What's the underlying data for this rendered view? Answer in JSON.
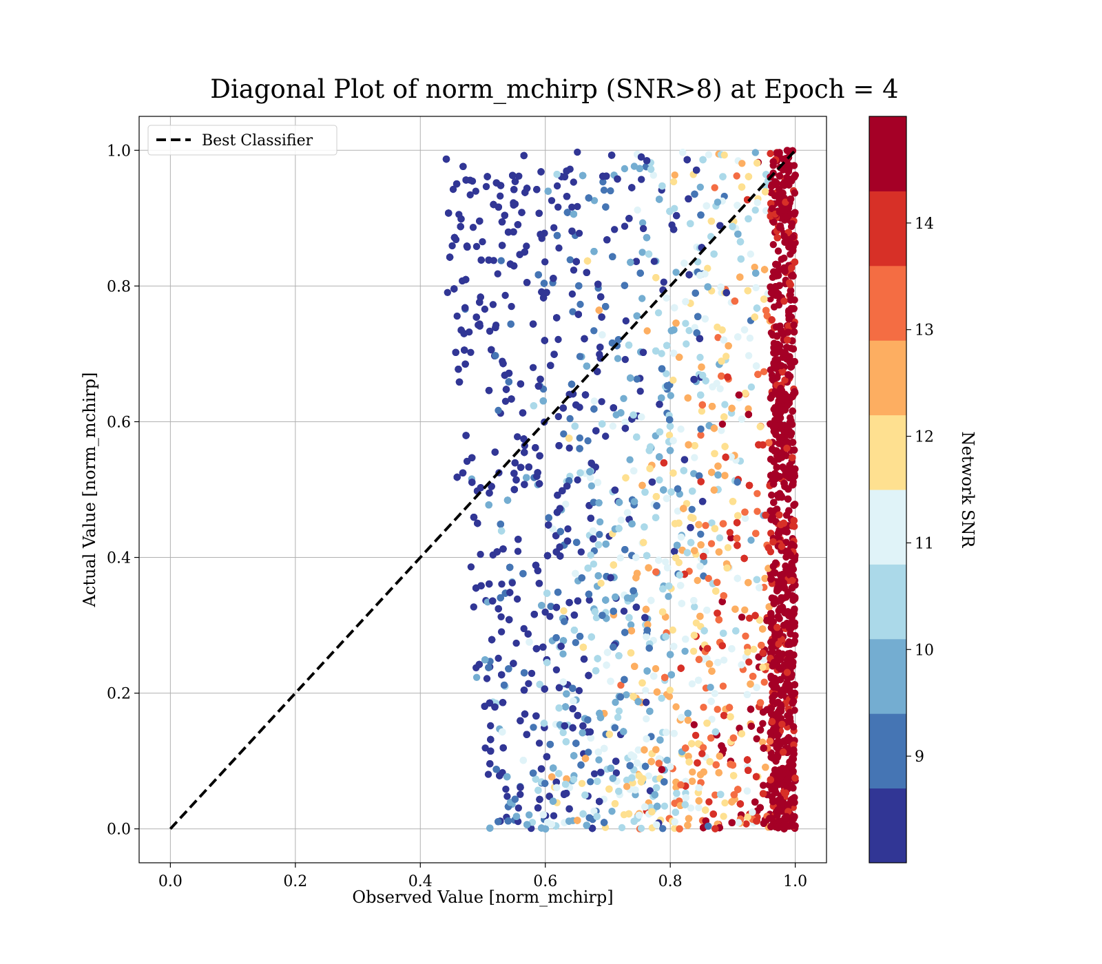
{
  "chart_data": {
    "type": "scatter",
    "title": "Diagonal Plot of norm_mchirp (SNR>8) at Epoch = 4",
    "xlabel": "Observed Value [norm_mchirp]",
    "ylabel": "Actual Value [norm_mchirp]",
    "xlim": [
      -0.05,
      1.05
    ],
    "ylim": [
      -0.05,
      1.05
    ],
    "x_ticks": [
      "0.0",
      "0.2",
      "0.4",
      "0.6",
      "0.8",
      "1.0"
    ],
    "y_ticks": [
      "0.0",
      "0.2",
      "0.4",
      "0.6",
      "0.8",
      "1.0"
    ],
    "grid": true,
    "legend": {
      "placement": "upper-left",
      "entries": [
        "Best Classifier"
      ]
    },
    "reference_line": {
      "name": "Best Classifier",
      "style": "dashed",
      "color": "#000000",
      "x": [
        0.0,
        1.0
      ],
      "y": [
        0.0,
        1.0
      ]
    },
    "colorbar": {
      "label": "Network SNR",
      "range": [
        8,
        15
      ],
      "ticks": [
        "9",
        "10",
        "11",
        "12",
        "13",
        "14"
      ],
      "bands": [
        "#313695",
        "#4575b4",
        "#74add1",
        "#abd9e9",
        "#e0f3f8",
        "#fee090",
        "#fdae61",
        "#f46d43",
        "#d73027",
        "#a50026"
      ]
    },
    "scatter_description_series": {
      "color_by": "Network SNR",
      "x_range_observed": [
        0.42,
        1.0
      ],
      "y_range_actual": [
        0.0,
        1.0
      ],
      "density_pattern": [
        {
          "x_center": 0.99,
          "snr": 14.5,
          "note": "dense dark-red column near x=1.0"
        },
        {
          "x_center": 0.9,
          "snr": 13.0
        },
        {
          "x_center": 0.75,
          "snr": 11.0
        },
        {
          "x_center": 0.6,
          "snr": 9.0
        }
      ]
    }
  }
}
